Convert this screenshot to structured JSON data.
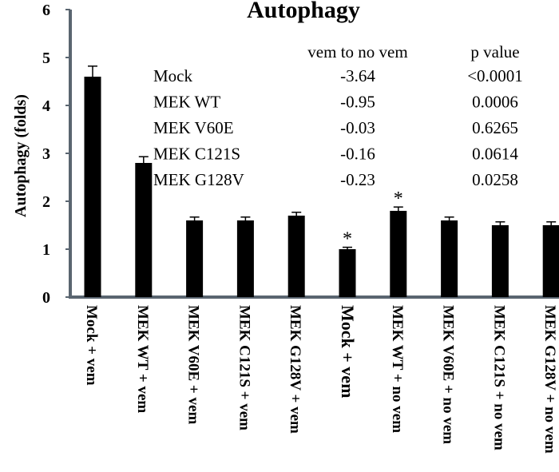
{
  "chart_data": {
    "type": "bar",
    "title": "Autophagy",
    "ylabel": "Autophagy (folds)",
    "xlabel": "",
    "ylim": [
      0,
      6
    ],
    "yticks": [
      "0",
      "1",
      "2",
      "3",
      "4",
      "5",
      "6"
    ],
    "grid": false,
    "bar_color": "#000000",
    "axis_color": "#5a6570",
    "categories": [
      "Mock + vem",
      "MEK WT + vem",
      "MEK V60E + vem",
      "MEK C121S + vem",
      "MEK G128V + vem",
      "Mock + vem",
      "MEK WT  + no vem",
      "MEK V60E + no vem",
      "MEK C121S + no vem",
      "MEK G128V + no vem"
    ],
    "values": [
      4.6,
      2.8,
      1.6,
      1.6,
      1.7,
      1.0,
      1.8,
      1.6,
      1.5,
      1.5
    ],
    "errors": [
      0.22,
      0.13,
      0.07,
      0.07,
      0.07,
      0.04,
      0.08,
      0.07,
      0.07,
      0.07
    ],
    "significance": [
      "",
      "",
      "",
      "",
      "",
      "*",
      "*",
      "",
      "",
      ""
    ],
    "annotation_table": {
      "headers": [
        "",
        "vem to no vem",
        "p value"
      ],
      "rows": [
        [
          "Mock",
          "-3.64",
          "<0.0001"
        ],
        [
          "MEK WT",
          "-0.95",
          "0.0006"
        ],
        [
          "MEK V60E",
          "-0.03",
          "0.6265"
        ],
        [
          "MEK C121S",
          "-0.16",
          "0.0614"
        ],
        [
          "MEK G128V",
          "-0.23",
          "0.0258"
        ]
      ]
    }
  }
}
